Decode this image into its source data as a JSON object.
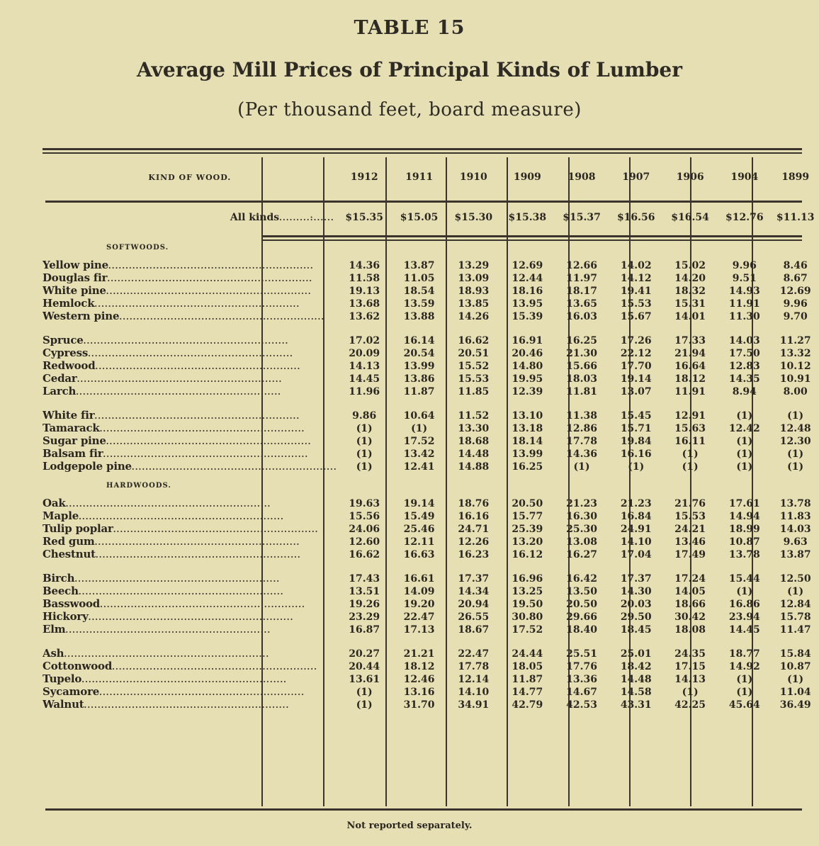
{
  "page": {
    "table_number": "TABLE 15",
    "title": "Average Mill Prices of Principal Kinds of Lumber",
    "subtitle": "(Per thousand feet, board measure)",
    "footnote": "Not reported separately."
  },
  "table": {
    "kind_header": "KIND OF WOOD.",
    "years": [
      "1912",
      "1911",
      "1910",
      "1909",
      "1908",
      "1907",
      "1906",
      "1904",
      "1899"
    ],
    "all_kinds": {
      "label": "All kinds",
      "values": [
        "$15.35",
        "$15.05",
        "$15.30",
        "$15.38",
        "$15.37",
        "$16.56",
        "$16.54",
        "$12.76",
        "$11.13"
      ]
    },
    "sections": [
      {
        "title": "SOFTWOODS.",
        "groups": [
          [
            {
              "name": "Yellow pine",
              "values": [
                "14.36",
                "13.87",
                "13.29",
                "12.69",
                "12.66",
                "14.02",
                "15.02",
                "9.96",
                "8.46"
              ]
            },
            {
              "name": "Douglas fir",
              "values": [
                "11.58",
                "11.05",
                "13.09",
                "12.44",
                "11.97",
                "14.12",
                "14.20",
                "9.51",
                "8.67"
              ]
            },
            {
              "name": "White pine",
              "values": [
                "19.13",
                "18.54",
                "18.93",
                "18.16",
                "18.17",
                "19.41",
                "18.32",
                "14.93",
                "12.69"
              ]
            },
            {
              "name": "Hemlock",
              "values": [
                "13.68",
                "13.59",
                "13.85",
                "13.95",
                "13.65",
                "15.53",
                "15.31",
                "11.91",
                "9.96"
              ]
            },
            {
              "name": "Western pine",
              "values": [
                "13.62",
                "13.88",
                "14.26",
                "15.39",
                "16.03",
                "15.67",
                "14.01",
                "11.30",
                "9.70"
              ]
            }
          ],
          [
            {
              "name": "Spruce",
              "values": [
                "17.02",
                "16.14",
                "16.62",
                "16.91",
                "16.25",
                "17.26",
                "17.33",
                "14.03",
                "11.27"
              ]
            },
            {
              "name": "Cypress",
              "values": [
                "20.09",
                "20.54",
                "20.51",
                "20.46",
                "21.30",
                "22.12",
                "21.94",
                "17.50",
                "13.32"
              ]
            },
            {
              "name": "Redwood",
              "values": [
                "14.13",
                "13.99",
                "15.52",
                "14.80",
                "15.66",
                "17.70",
                "16.64",
                "12.83",
                "10.12"
              ]
            },
            {
              "name": "Cedar",
              "values": [
                "14.45",
                "13.86",
                "15.53",
                "19.95",
                "18.03",
                "19.14",
                "18.12",
                "14.35",
                "10.91"
              ]
            },
            {
              "name": "Larch",
              "values": [
                "11.96",
                "11.87",
                "11.85",
                "12.39",
                "11.81",
                "13.07",
                "11.91",
                "8.94",
                "8.00"
              ]
            }
          ],
          [
            {
              "name": "White fir",
              "values": [
                "9.86",
                "10.64",
                "11.52",
                "13.10",
                "11.38",
                "15.45",
                "12.91",
                "(1)",
                "(1)"
              ]
            },
            {
              "name": "Tamarack",
              "values": [
                "(1)",
                "(1)",
                "13.30",
                "13.18",
                "12.86",
                "15.71",
                "15.63",
                "12.42",
                "12.48"
              ]
            },
            {
              "name": "Sugar pine",
              "values": [
                "(1)",
                "17.52",
                "18.68",
                "18.14",
                "17.78",
                "19.84",
                "16.11",
                "(1)",
                "12.30"
              ]
            },
            {
              "name": "Balsam fir",
              "values": [
                "(1)",
                "13.42",
                "14.48",
                "13.99",
                "14.36",
                "16.16",
                "(1)",
                "(1)",
                "(1)"
              ]
            },
            {
              "name": "Lodgepole pine",
              "values": [
                "(1)",
                "12.41",
                "14.88",
                "16.25",
                "(1)",
                "(1)",
                "(1)",
                "(1)",
                "(1)"
              ]
            }
          ]
        ]
      },
      {
        "title": "HARDWOODS.",
        "groups": [
          [
            {
              "name": "Oak",
              "values": [
                "19.63",
                "19.14",
                "18.76",
                "20.50",
                "21.23",
                "21.23",
                "21.76",
                "17.61",
                "13.78"
              ]
            },
            {
              "name": "Maple",
              "values": [
                "15.56",
                "15.49",
                "16.16",
                "15.77",
                "16.30",
                "16.84",
                "15.53",
                "14.94",
                "11.83"
              ]
            },
            {
              "name": "Tulip poplar",
              "values": [
                "24.06",
                "25.46",
                "24.71",
                "25.39",
                "25.30",
                "24.91",
                "24.21",
                "18.99",
                "14.03"
              ]
            },
            {
              "name": "Red gum",
              "values": [
                "12.60",
                "12.11",
                "12.26",
                "13.20",
                "13.08",
                "14.10",
                "13.46",
                "10.87",
                "9.63"
              ]
            },
            {
              "name": "Chestnut",
              "values": [
                "16.62",
                "16.63",
                "16.23",
                "16.12",
                "16.27",
                "17.04",
                "17.49",
                "13.78",
                "13.87"
              ]
            }
          ],
          [
            {
              "name": "Birch",
              "values": [
                "17.43",
                "16.61",
                "17.37",
                "16.96",
                "16.42",
                "17.37",
                "17.24",
                "15.44",
                "12.50"
              ]
            },
            {
              "name": "Beech",
              "values": [
                "13.51",
                "14.09",
                "14.34",
                "13.25",
                "13.50",
                "14.30",
                "14.05",
                "(1)",
                "(1)"
              ]
            },
            {
              "name": "Basswood",
              "values": [
                "19.26",
                "19.20",
                "20.94",
                "19.50",
                "20.50",
                "20.03",
                "18.66",
                "16.86",
                "12.84"
              ]
            },
            {
              "name": "Hickory",
              "values": [
                "23.29",
                "22.47",
                "26.55",
                "30.80",
                "29.66",
                "29.50",
                "30.42",
                "23.94",
                "15.78"
              ]
            },
            {
              "name": "Elm",
              "values": [
                "16.87",
                "17.13",
                "18.67",
                "17.52",
                "18.40",
                "18.45",
                "18.08",
                "14.45",
                "11.47"
              ]
            }
          ],
          [
            {
              "name": "Ash",
              "values": [
                "20.27",
                "21.21",
                "22.47",
                "24.44",
                "25.51",
                "25.01",
                "24.35",
                "18.77",
                "15.84"
              ]
            },
            {
              "name": "Cottonwood",
              "values": [
                "20.44",
                "18.12",
                "17.78",
                "18.05",
                "17.76",
                "18.42",
                "17.15",
                "14.92",
                "10.87"
              ]
            },
            {
              "name": "Tupelo",
              "values": [
                "13.61",
                "12.46",
                "12.14",
                "11.87",
                "13.36",
                "14.48",
                "14.13",
                "(1)",
                "(1)"
              ]
            },
            {
              "name": "Sycamore",
              "values": [
                "(1)",
                "13.16",
                "14.10",
                "14.77",
                "14.67",
                "14.58",
                "(1)",
                "(1)",
                "11.04"
              ]
            },
            {
              "name": "Walnut",
              "values": [
                "(1)",
                "31.70",
                "34.91",
                "42.79",
                "42.53",
                "43.31",
                "42.25",
                "45.64",
                "36.49"
              ]
            }
          ]
        ]
      }
    ]
  }
}
